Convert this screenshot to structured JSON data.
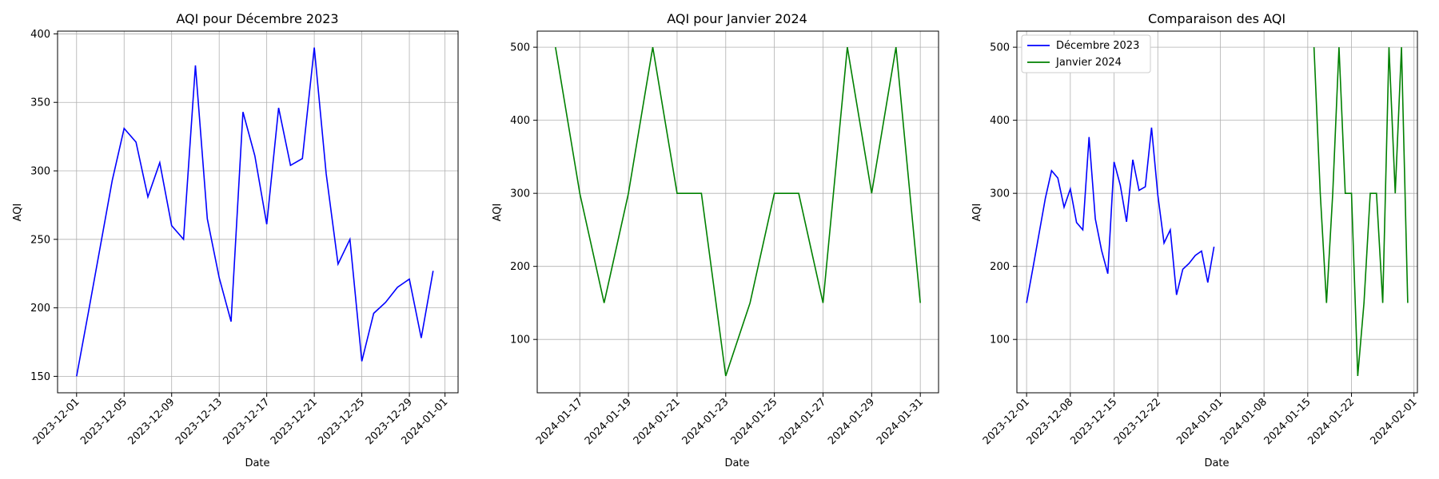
{
  "colors": {
    "december": "#0000ff",
    "january": "#008000"
  },
  "chart_data": [
    {
      "type": "line",
      "title": "AQI pour Décembre 2023",
      "xlabel": "Date",
      "ylabel": "AQI",
      "xlim": [
        "2023-11-29.4",
        "2024-01-02.1"
      ],
      "ylim": [
        138,
        402
      ],
      "yticks": [
        150,
        200,
        250,
        300,
        350,
        400
      ],
      "xticks": [
        "2023-12-01",
        "2023-12-05",
        "2023-12-09",
        "2023-12-13",
        "2023-12-17",
        "2023-12-21",
        "2023-12-25",
        "2023-12-29",
        "2024-01-01"
      ],
      "grid": true,
      "series": [
        {
          "color": "#0000ff",
          "x": [
            "2023-12-01",
            "2023-12-02",
            "2023-12-03",
            "2023-12-04",
            "2023-12-05",
            "2023-12-06",
            "2023-12-07",
            "2023-12-08",
            "2023-12-09",
            "2023-12-10",
            "2023-12-11",
            "2023-12-12",
            "2023-12-13",
            "2023-12-14",
            "2023-12-15",
            "2023-12-16",
            "2023-12-17",
            "2023-12-18",
            "2023-12-19",
            "2023-12-20",
            "2023-12-21",
            "2023-12-22",
            "2023-12-23",
            "2023-12-24",
            "2023-12-25",
            "2023-12-26",
            "2023-12-27",
            "2023-12-28",
            "2023-12-29",
            "2023-12-30",
            "2023-12-31"
          ],
          "values": [
            150,
            197,
            245,
            293,
            331,
            321,
            281,
            306,
            260,
            250,
            377,
            265,
            222,
            190,
            343,
            311,
            261,
            346,
            304,
            309,
            390,
            298,
            232,
            250,
            161,
            196,
            204,
            215,
            221,
            178,
            227
          ]
        }
      ]
    },
    {
      "type": "line",
      "title": "AQI pour Janvier 2024",
      "xlabel": "Date",
      "ylabel": "AQI",
      "xlim": [
        "2024-01-15.25",
        "2024-01-31.75"
      ],
      "ylim": [
        27,
        522
      ],
      "yticks": [
        100,
        200,
        300,
        400,
        500
      ],
      "xticks": [
        "2024-01-17",
        "2024-01-19",
        "2024-01-21",
        "2024-01-23",
        "2024-01-25",
        "2024-01-27",
        "2024-01-29",
        "2024-01-31"
      ],
      "grid": true,
      "series": [
        {
          "color": "#008000",
          "x": [
            "2024-01-16",
            "2024-01-17",
            "2024-01-18",
            "2024-01-19",
            "2024-01-20",
            "2024-01-21",
            "2024-01-22",
            "2024-01-23",
            "2024-01-24",
            "2024-01-25",
            "2024-01-26",
            "2024-01-27",
            "2024-01-28",
            "2024-01-29",
            "2024-01-30",
            "2024-01-31"
          ],
          "values": [
            500,
            300,
            150,
            300,
            500,
            300,
            300,
            50,
            150,
            300,
            300,
            150,
            500,
            300,
            500,
            150
          ]
        }
      ]
    },
    {
      "type": "line",
      "title": "Comparaison des AQI",
      "xlabel": "Date",
      "ylabel": "AQI",
      "xlim": [
        "2023-11-29.45",
        "2024-02-01.55"
      ],
      "ylim": [
        27,
        522
      ],
      "yticks": [
        100,
        200,
        300,
        400,
        500
      ],
      "xticks": [
        "2023-12-01",
        "2023-12-08",
        "2023-12-15",
        "2023-12-22",
        "2024-01-01",
        "2024-01-08",
        "2024-01-15",
        "2024-01-22",
        "2024-02-01"
      ],
      "grid": true,
      "legend": "top-left",
      "series": [
        {
          "name": "Décembre 2023",
          "color": "#0000ff",
          "x": [
            "2023-12-01",
            "2023-12-02",
            "2023-12-03",
            "2023-12-04",
            "2023-12-05",
            "2023-12-06",
            "2023-12-07",
            "2023-12-08",
            "2023-12-09",
            "2023-12-10",
            "2023-12-11",
            "2023-12-12",
            "2023-12-13",
            "2023-12-14",
            "2023-12-15",
            "2023-12-16",
            "2023-12-17",
            "2023-12-18",
            "2023-12-19",
            "2023-12-20",
            "2023-12-21",
            "2023-12-22",
            "2023-12-23",
            "2023-12-24",
            "2023-12-25",
            "2023-12-26",
            "2023-12-27",
            "2023-12-28",
            "2023-12-29",
            "2023-12-30",
            "2023-12-31"
          ],
          "values": [
            150,
            197,
            245,
            293,
            331,
            321,
            281,
            306,
            260,
            250,
            377,
            265,
            222,
            190,
            343,
            311,
            261,
            346,
            304,
            309,
            390,
            298,
            232,
            250,
            161,
            196,
            204,
            215,
            221,
            178,
            227
          ]
        },
        {
          "name": "Janvier 2024",
          "color": "#008000",
          "x": [
            "2024-01-16",
            "2024-01-17",
            "2024-01-18",
            "2024-01-19",
            "2024-01-20",
            "2024-01-21",
            "2024-01-22",
            "2024-01-23",
            "2024-01-24",
            "2024-01-25",
            "2024-01-26",
            "2024-01-27",
            "2024-01-28",
            "2024-01-29",
            "2024-01-30",
            "2024-01-31"
          ],
          "values": [
            500,
            300,
            150,
            300,
            500,
            300,
            300,
            50,
            150,
            300,
            300,
            150,
            500,
            300,
            500,
            150
          ]
        }
      ]
    }
  ]
}
